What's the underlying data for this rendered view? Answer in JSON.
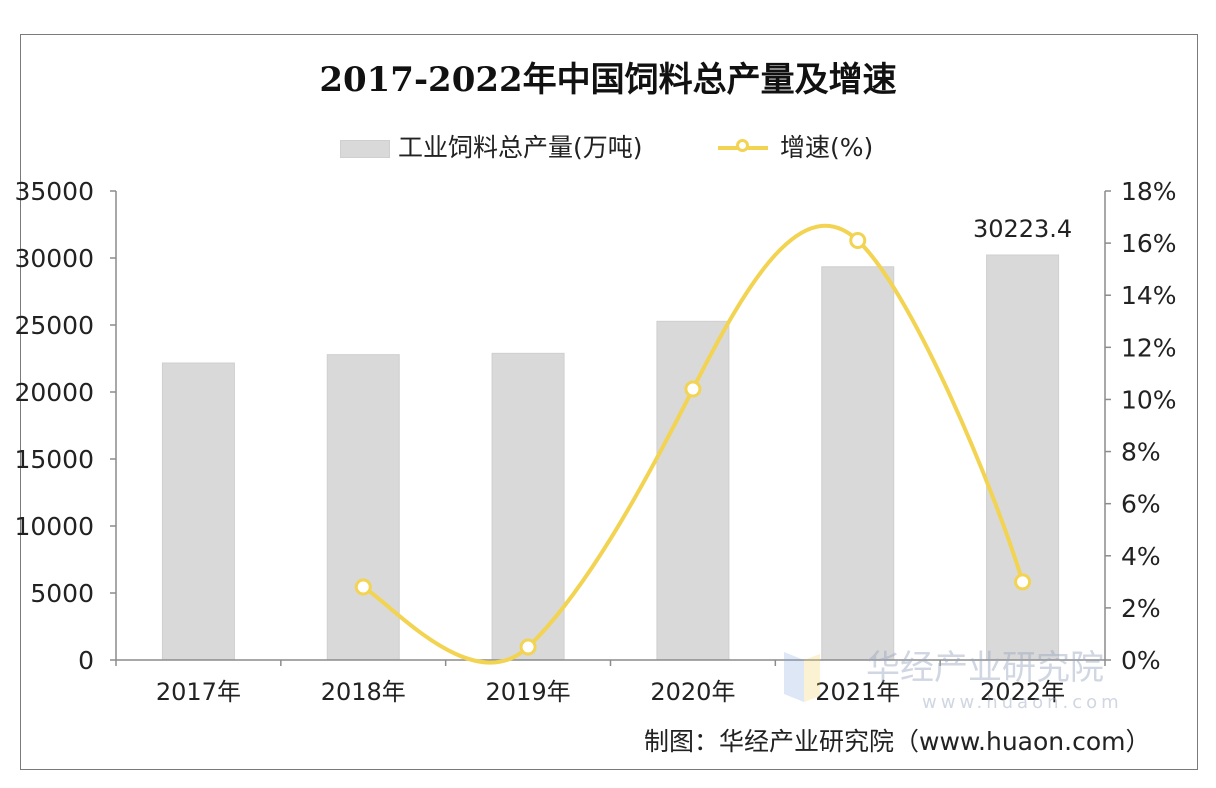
{
  "chart_data": {
    "type": "bar",
    "title": "2017-2022年中国饲料总产量及增速",
    "categories": [
      "2017年",
      "2018年",
      "2019年",
      "2020年",
      "2021年",
      "2022年"
    ],
    "series": [
      {
        "name": "工业饲料总产量(万吨)",
        "type": "bar",
        "axis": "left",
        "values": [
          22161.2,
          22788.4,
          22885.4,
          25276.1,
          29344.3,
          30223.4
        ]
      },
      {
        "name": "增速(%)",
        "type": "line",
        "axis": "right",
        "values": [
          null,
          2.8,
          0.5,
          10.4,
          16.1,
          3.0
        ]
      }
    ],
    "data_labels": [
      {
        "category": "2022年",
        "text": "30223.4"
      }
    ],
    "y_left": {
      "min": 0,
      "max": 35000,
      "step": 5000,
      "ticks": [
        "0",
        "5000",
        "10000",
        "15000",
        "20000",
        "25000",
        "30000",
        "35000"
      ]
    },
    "y_right": {
      "min": 0,
      "max": 18,
      "step": 2,
      "ticks": [
        "0%",
        "2%",
        "4%",
        "6%",
        "8%",
        "10%",
        "12%",
        "14%",
        "16%",
        "18%"
      ]
    },
    "grid": false,
    "legend_position": "top",
    "colors": {
      "bar": "#d9d9d9",
      "line": "#f2d352",
      "marker_fill": "#ffffff"
    }
  },
  "source_text": "制图：华经产业研究院（www.huaon.com）",
  "watermark": {
    "text": "华经产业研究院",
    "url": "www.huaon.com"
  }
}
